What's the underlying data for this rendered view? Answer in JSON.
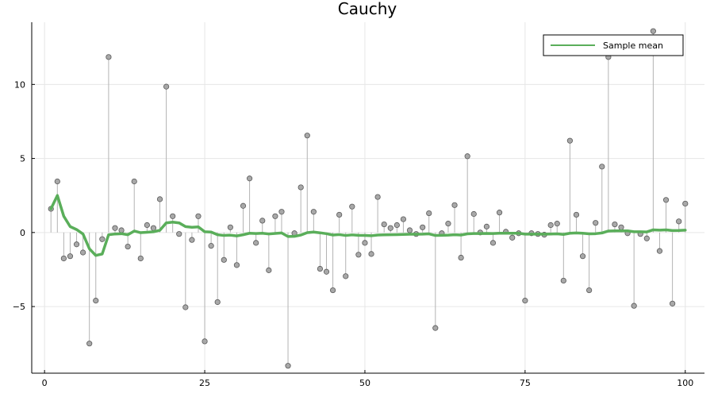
{
  "chart_data": {
    "type": "scatter",
    "title": "Cauchy",
    "xlabel": "",
    "ylabel": "",
    "xlim": [
      -2,
      103
    ],
    "ylim": [
      -9.5,
      14.2
    ],
    "x_ticks": [
      0,
      25,
      50,
      75,
      100
    ],
    "y_ticks": [
      -5,
      0,
      5,
      10
    ],
    "y_tick_labels": [
      "−5",
      "0",
      "5",
      "10"
    ],
    "grid": true,
    "legend_position": "top-right",
    "series": [
      {
        "kind": "stem-points",
        "x": [
          1,
          2,
          3,
          4,
          5,
          6,
          7,
          8,
          9,
          10,
          11,
          12,
          13,
          14,
          15,
          16,
          17,
          18,
          19,
          20,
          21,
          22,
          23,
          24,
          25,
          26,
          27,
          28,
          29,
          30,
          31,
          32,
          33,
          34,
          35,
          36,
          37,
          38,
          39,
          40,
          41,
          42,
          43,
          44,
          45,
          46,
          47,
          48,
          49,
          50,
          51,
          52,
          53,
          54,
          55,
          56,
          57,
          58,
          59,
          60,
          61,
          62,
          63,
          64,
          65,
          66,
          67,
          68,
          69,
          70,
          71,
          72,
          73,
          74,
          75,
          76,
          77,
          78,
          79,
          80,
          81,
          82,
          83,
          84,
          85,
          86,
          87,
          88,
          89,
          90,
          91,
          92,
          93,
          94,
          95,
          96,
          97,
          98,
          99,
          100
        ],
        "values": [
          1.6,
          3.45,
          -1.75,
          -1.6,
          -0.8,
          -1.35,
          -7.5,
          -4.6,
          -0.45,
          11.85,
          0.3,
          0.15,
          -0.95,
          3.45,
          -1.75,
          0.5,
          0.3,
          2.25,
          9.85,
          1.1,
          -0.1,
          -5.05,
          -0.5,
          1.1,
          -7.35,
          -0.9,
          -4.7,
          -1.85,
          0.35,
          -2.2,
          1.8,
          3.65,
          -0.7,
          0.8,
          -2.55,
          1.1,
          1.4,
          -9.0,
          -0.05,
          3.05,
          6.55,
          1.4,
          -2.45,
          -2.65,
          -3.9,
          1.2,
          -2.95,
          1.75,
          -1.5,
          -0.7,
          -1.45,
          2.4,
          0.55,
          0.3,
          0.5,
          0.9,
          0.15,
          -0.1,
          0.35,
          1.3,
          -6.45,
          -0.05,
          0.6,
          1.85,
          -1.7,
          5.15,
          1.25,
          0.0,
          0.4,
          -0.7,
          1.35,
          0.05,
          -0.35,
          -0.05,
          -4.6,
          -0.05,
          -0.1,
          -0.15,
          0.5,
          0.6,
          -3.25,
          6.2,
          1.2,
          -1.6,
          -3.9,
          0.65,
          4.45,
          11.85,
          0.55,
          0.35,
          -0.05,
          -4.95,
          -0.1,
          -0.4,
          13.6,
          -1.25,
          2.2,
          -4.8,
          0.75,
          1.95
        ]
      },
      {
        "name": "Sample mean",
        "kind": "line",
        "color": "#5aae5a",
        "values": [
          1.6,
          2.5,
          1.1,
          0.4,
          0.2,
          -0.1,
          -1.1,
          -1.55,
          -1.45,
          -0.15,
          -0.1,
          -0.08,
          -0.15,
          0.1,
          -0.01,
          0.02,
          0.05,
          0.15,
          0.65,
          0.7,
          0.65,
          0.4,
          0.35,
          0.38,
          0.05,
          0.03,
          -0.15,
          -0.2,
          -0.18,
          -0.23,
          -0.15,
          -0.05,
          -0.07,
          -0.05,
          -0.1,
          -0.06,
          -0.03,
          -0.27,
          -0.26,
          -0.17,
          -0.01,
          0.03,
          -0.02,
          -0.08,
          -0.17,
          -0.14,
          -0.2,
          -0.16,
          -0.19,
          -0.2,
          -0.22,
          -0.17,
          -0.16,
          -0.15,
          -0.14,
          -0.13,
          -0.12,
          -0.12,
          -0.11,
          -0.09,
          -0.2,
          -0.19,
          -0.18,
          -0.15,
          -0.17,
          -0.09,
          -0.07,
          -0.07,
          -0.06,
          -0.07,
          -0.05,
          -0.05,
          -0.05,
          -0.05,
          -0.11,
          -0.11,
          -0.11,
          -0.11,
          -0.1,
          -0.09,
          -0.13,
          -0.05,
          -0.03,
          -0.05,
          -0.09,
          -0.08,
          -0.03,
          0.1,
          0.11,
          0.11,
          0.11,
          0.05,
          0.05,
          0.04,
          0.18,
          0.16,
          0.18,
          0.13,
          0.14,
          0.16
        ]
      }
    ]
  },
  "legend": {
    "label": "Sample mean"
  }
}
